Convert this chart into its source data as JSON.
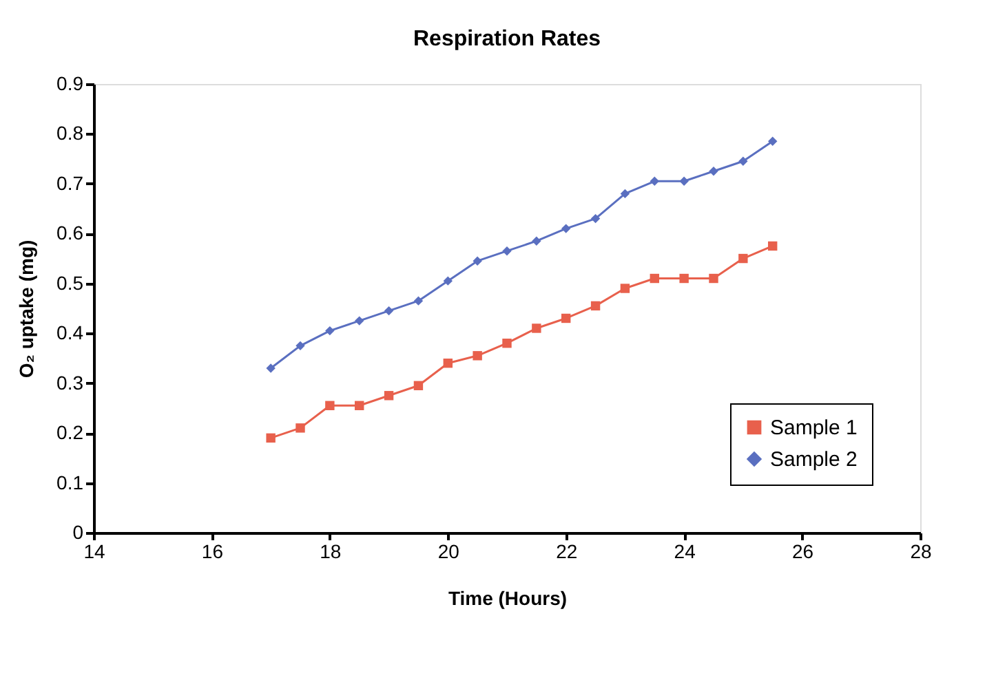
{
  "chart_data": {
    "type": "line",
    "title": "Respiration Rates",
    "xlabel": "Time (Hours)",
    "ylabel": "O₂ uptake (mg)",
    "x": [
      17,
      17.5,
      18,
      18.5,
      19,
      19.5,
      20,
      20.5,
      21,
      21.5,
      22,
      22.5,
      23,
      23.5,
      24,
      24.5,
      25,
      25.5
    ],
    "series": [
      {
        "name": "Sample 1",
        "color": "#e8604c",
        "values": [
          0.19,
          0.21,
          0.255,
          0.255,
          0.275,
          0.295,
          0.34,
          0.355,
          0.38,
          0.41,
          0.43,
          0.455,
          0.49,
          0.51,
          0.51,
          0.51,
          0.55,
          0.575
        ]
      },
      {
        "name": "Sample 2",
        "color": "#5a6fc0",
        "marker": "diamond",
        "values": [
          0.33,
          0.375,
          0.405,
          0.425,
          0.445,
          0.465,
          0.505,
          0.545,
          0.565,
          0.585,
          0.61,
          0.63,
          0.68,
          0.705,
          0.705,
          0.725,
          0.745,
          0.785
        ]
      }
    ],
    "xlim": [
      14,
      28
    ],
    "xticks": [
      14,
      16,
      18,
      20,
      22,
      24,
      26,
      28
    ],
    "ylim": [
      0,
      0.9
    ],
    "yticks": [
      0,
      0.1,
      0.2,
      0.3,
      0.4,
      0.5,
      0.6,
      0.7,
      0.8,
      0.9
    ],
    "grid": false,
    "legend": "bottom right",
    "marker": "square",
    "line_style": "solid"
  }
}
